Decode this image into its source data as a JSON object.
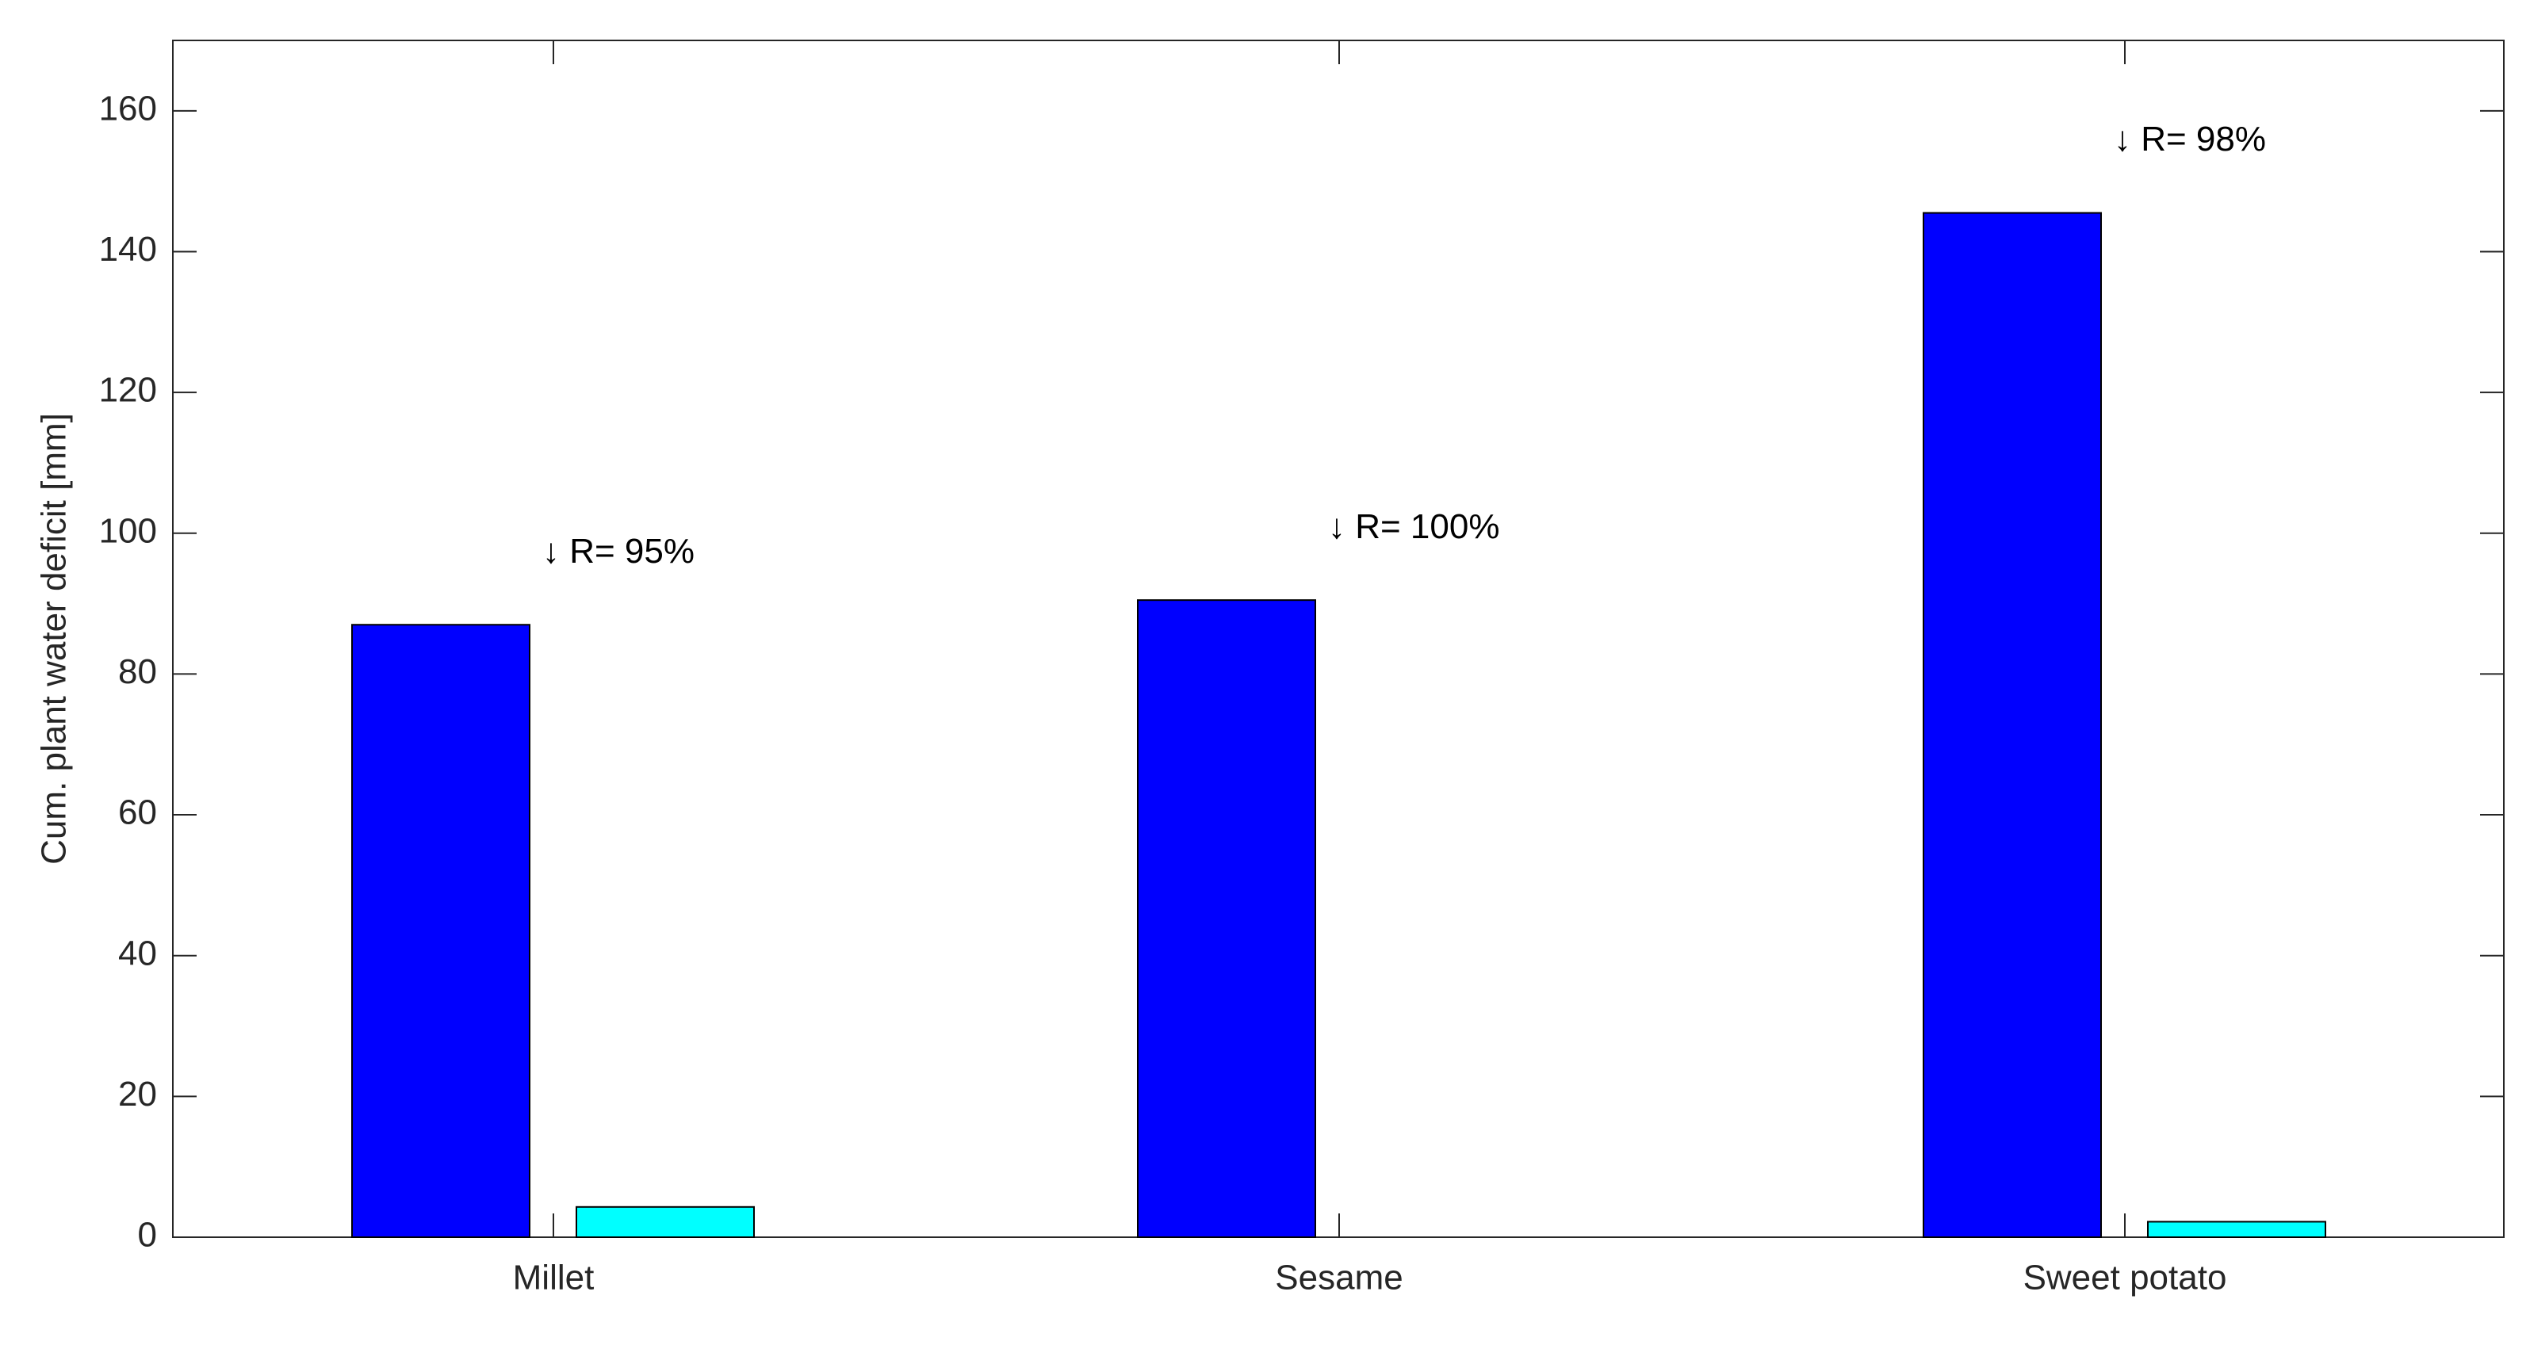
{
  "chart_data": {
    "type": "bar",
    "y_label": "Cum. plant water deficit [mm]",
    "categories": [
      "Millet",
      "Sesame",
      "Sweet potato"
    ],
    "series": [
      {
        "color": "#0000ff",
        "values": [
          87,
          90.5,
          145.5
        ]
      },
      {
        "color": "#00ffff",
        "values": [
          4.3,
          0,
          2.2
        ]
      }
    ],
    "annotations": [
      "↓ R= 95%",
      "↓ R= 100%",
      "↓ R= 98%"
    ],
    "ylim": [
      0,
      170
    ],
    "yticks": [
      0,
      20,
      40,
      60,
      80,
      100,
      120,
      140,
      160
    ]
  }
}
